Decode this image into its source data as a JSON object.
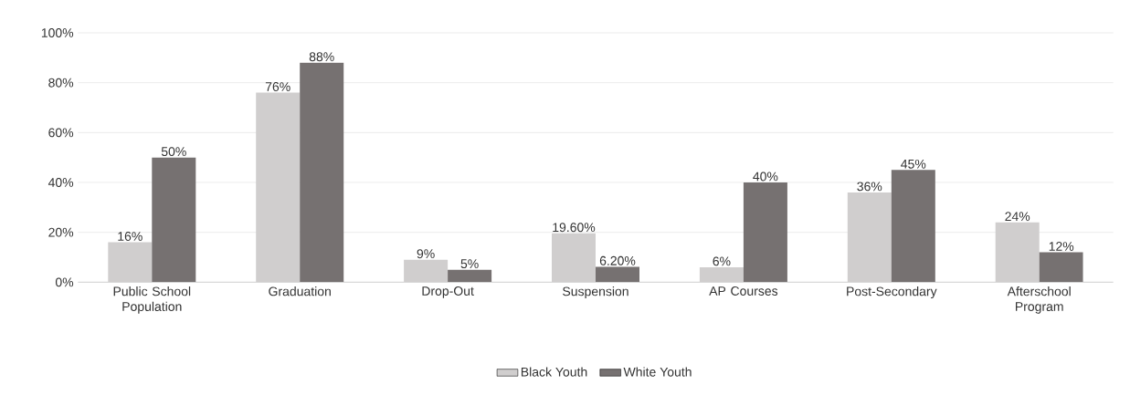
{
  "chart_data": {
    "type": "bar",
    "categories": [
      "Public School Population",
      "Graduation",
      "Drop-Out",
      "Suspension",
      "AP Courses",
      "Post-Secondary",
      "Afterschool Program"
    ],
    "series": [
      {
        "name": "Black Youth",
        "color": "#d0cece",
        "values": [
          16,
          76,
          9,
          19.6,
          6,
          36,
          24
        ],
        "value_labels": [
          "16%",
          "76%",
          "9%",
          "19.60%",
          "6%",
          "36%",
          "24%"
        ]
      },
      {
        "name": "White Youth",
        "color": "#767171",
        "values": [
          50,
          88,
          5,
          6.2,
          40,
          45,
          12
        ],
        "value_labels": [
          "50%",
          "88%",
          "5%",
          "6.20%",
          "40%",
          "45%",
          "12%"
        ]
      }
    ],
    "ylim": [
      0,
      100
    ],
    "yticks": [
      {
        "value": 0,
        "label": "0%"
      },
      {
        "value": 20,
        "label": "20%"
      },
      {
        "value": 40,
        "label": "40%"
      },
      {
        "value": 60,
        "label": "60%"
      },
      {
        "value": 80,
        "label": "80%"
      },
      {
        "value": 100,
        "label": "100%"
      }
    ],
    "grid": "y",
    "legend": "bottom"
  }
}
